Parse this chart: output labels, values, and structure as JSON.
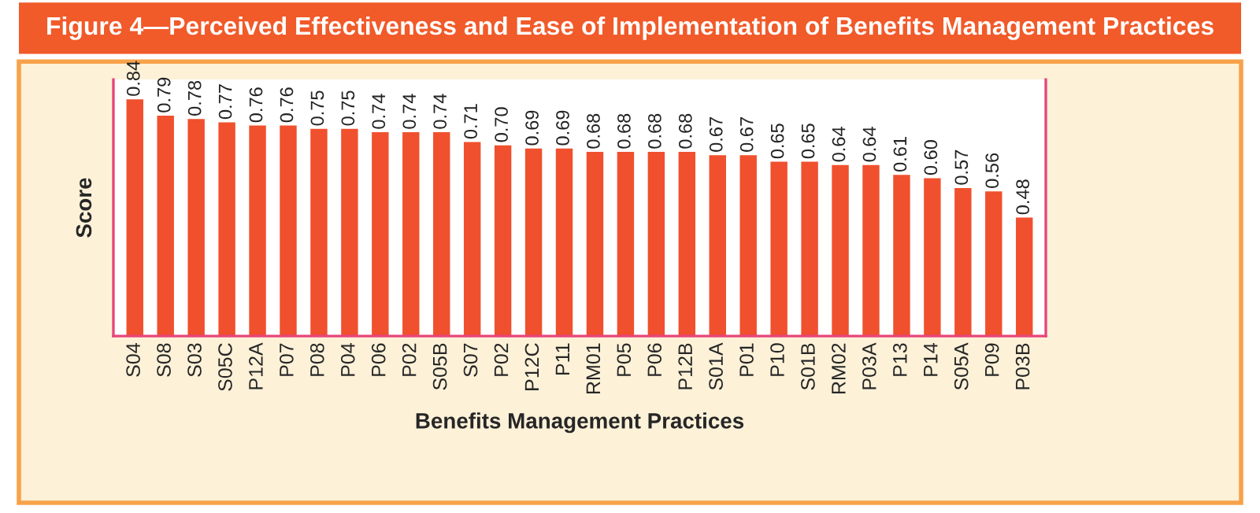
{
  "chart_data": {
    "type": "bar",
    "title": "Figure 4—Perceived Effectiveness and Ease of Implementation of Benefits Management Practices",
    "xlabel": "Benefits Management Practices",
    "ylabel": "Score",
    "categories": [
      "S04",
      "S08",
      "S03",
      "S05C",
      "P12A",
      "P07",
      "P08",
      "P04",
      "P06",
      "P02",
      "S05B",
      "S07",
      "P02",
      "P12C",
      "P11",
      "RM01",
      "P05",
      "P06",
      "P12B",
      "S01A",
      "P01",
      "P10",
      "S01B",
      "RM02",
      "P03A",
      "P13",
      "P14",
      "S05A",
      "P09",
      "P03B"
    ],
    "values": [
      0.84,
      0.79,
      0.78,
      0.77,
      0.76,
      0.76,
      0.75,
      0.75,
      0.74,
      0.74,
      0.74,
      0.71,
      0.7,
      0.69,
      0.69,
      0.68,
      0.68,
      0.68,
      0.68,
      0.67,
      0.67,
      0.65,
      0.65,
      0.64,
      0.64,
      0.61,
      0.6,
      0.57,
      0.56,
      0.48
    ],
    "value_labels": [
      "0.84",
      "0.79",
      "0.78",
      "0.77",
      "0.76",
      "0.76",
      "0.75",
      "0.75",
      "0.74",
      "0.74",
      "0.74",
      "0.71",
      "0.70",
      "0.69",
      "0.69",
      "0.68",
      "0.68",
      "0.68",
      "0.68",
      "0.67",
      "0.67",
      "0.65",
      "0.65",
      "0.64",
      "0.64",
      "0.61",
      "0.60",
      "0.57",
      "0.56",
      "0.48"
    ],
    "color": "#f0502d",
    "ylim": [
      0.12,
      0.9
    ],
    "tick_labels": "x",
    "grid": false,
    "legend": false
  }
}
